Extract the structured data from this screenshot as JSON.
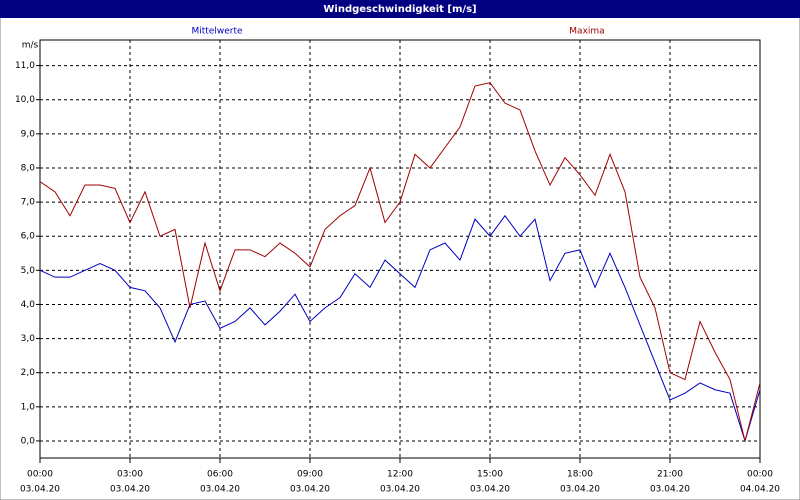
{
  "chart_data": {
    "type": "line",
    "title": "Windgeschwindigkeit [m/s]",
    "y_label": "m/s",
    "x": [
      0,
      0.5,
      1,
      1.5,
      2,
      2.5,
      3,
      3.5,
      4,
      4.5,
      5,
      5.5,
      6,
      6.5,
      7,
      7.5,
      8,
      8.5,
      9,
      9.5,
      10,
      10.5,
      11,
      11.5,
      12,
      12.5,
      13,
      13.5,
      14,
      14.5,
      15,
      15.5,
      16,
      16.5,
      17,
      17.5,
      18,
      18.5,
      19,
      19.5,
      20,
      20.5,
      21,
      21.5,
      22,
      22.5,
      23,
      23.5,
      24
    ],
    "series": [
      {
        "name": "Mittelwerte",
        "color": "#0000c0",
        "values": [
          5.0,
          4.8,
          4.8,
          5.0,
          5.2,
          5.0,
          4.5,
          4.4,
          3.9,
          2.9,
          4.0,
          4.1,
          3.3,
          3.5,
          3.9,
          3.4,
          3.8,
          4.3,
          3.5,
          3.9,
          4.2,
          4.9,
          4.5,
          5.3,
          4.9,
          4.5,
          5.6,
          5.8,
          5.3,
          6.5,
          6.0,
          6.6,
          6.0,
          6.5,
          4.7,
          5.5,
          5.6,
          4.5,
          5.5,
          4.5,
          3.4,
          2.3,
          1.2,
          1.4,
          1.7,
          1.5,
          1.4,
          0.0,
          1.5
        ]
      },
      {
        "name": "Maxima",
        "color": "#a00000",
        "values": [
          7.6,
          7.3,
          6.6,
          7.5,
          7.5,
          7.4,
          6.4,
          7.3,
          6.0,
          6.2,
          3.9,
          5.8,
          4.4,
          5.6,
          5.6,
          5.4,
          5.8,
          5.5,
          5.1,
          6.2,
          6.6,
          6.9,
          8.0,
          6.4,
          7.0,
          8.4,
          8.0,
          8.6,
          9.2,
          10.4,
          10.5,
          9.9,
          9.7,
          8.5,
          7.5,
          8.3,
          7.8,
          7.2,
          8.4,
          7.3,
          4.8,
          3.9,
          2.0,
          1.8,
          3.5,
          2.6,
          1.8,
          0.0,
          1.7
        ]
      }
    ],
    "xlim": [
      0,
      24
    ],
    "xticks": [
      {
        "value": 0,
        "label": "00:00",
        "date": "03.04.20"
      },
      {
        "value": 3,
        "label": "03:00",
        "date": "03.04.20"
      },
      {
        "value": 6,
        "label": "06:00",
        "date": "03.04.20"
      },
      {
        "value": 9,
        "label": "09:00",
        "date": "03.04.20"
      },
      {
        "value": 12,
        "label": "12:00",
        "date": "03.04.20"
      },
      {
        "value": 15,
        "label": "15:00",
        "date": "03.04.20"
      },
      {
        "value": 18,
        "label": "18:00",
        "date": "03.04.20"
      },
      {
        "value": 21,
        "label": "21:00",
        "date": "03.04.20"
      },
      {
        "value": 24,
        "label": "00:00",
        "date": "04.04.20"
      }
    ],
    "ylim": [
      -0.5,
      11.75
    ],
    "yticks": [
      {
        "value": 0,
        "label": "0,0"
      },
      {
        "value": 1,
        "label": "1,0"
      },
      {
        "value": 2,
        "label": "2,0"
      },
      {
        "value": 3,
        "label": "3,0"
      },
      {
        "value": 4,
        "label": "4,0"
      },
      {
        "value": 5,
        "label": "5,0"
      },
      {
        "value": 6,
        "label": "6,0"
      },
      {
        "value": 7,
        "label": "7,0"
      },
      {
        "value": 8,
        "label": "8,0"
      },
      {
        "value": 9,
        "label": "9,0"
      },
      {
        "value": 10,
        "label": "10,0"
      },
      {
        "value": 11,
        "label": "11,0"
      }
    ],
    "grid": true
  }
}
